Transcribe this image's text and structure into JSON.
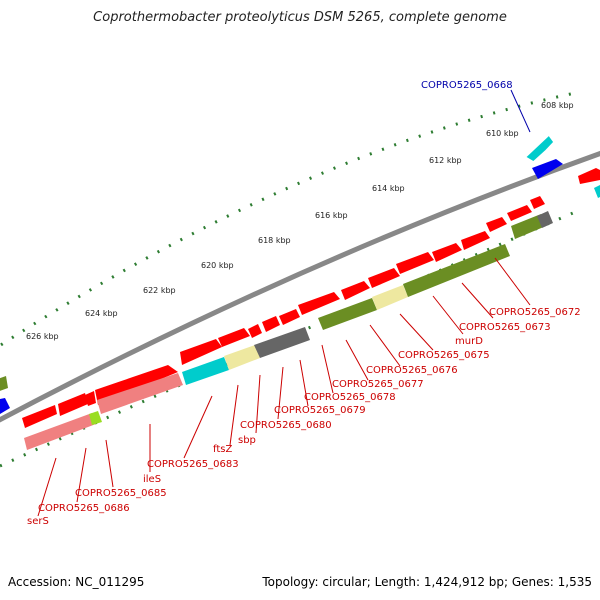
{
  "title": "Coprothermobacter proteolyticus DSM 5265, complete genome",
  "footer": {
    "accession": "Accession: NC_011295",
    "topology": "Topology: circular; Length: 1,424,912 bp; Genes: 1,535"
  },
  "colors": {
    "backbone": "#808080",
    "red": "#ff0000",
    "salmon": "#f08080",
    "cyan": "#00cccc",
    "khaki": "#eee8a0",
    "gray": "#666666",
    "olive": "#6b8e23",
    "lime": "#99dd22",
    "blue": "#0000ee",
    "tick": "#2e7d32",
    "label_red": "#cc0000",
    "label_blue": "#0000aa"
  },
  "kbp_ticks": [
    "608 kbp",
    "610 kbp",
    "612 kbp",
    "614 kbp",
    "616 kbp",
    "618 kbp",
    "620 kbp",
    "622 kbp",
    "624 kbp",
    "626 kbp"
  ],
  "gene_labels_red": [
    "COPRO5265_0672",
    "COPRO5265_0673",
    "murD",
    "COPRO5265_0675",
    "COPRO5265_0676",
    "COPRO5265_0677",
    "COPRO5265_0678",
    "COPRO5265_0679",
    "COPRO5265_0680",
    "sbp",
    "ftsZ",
    "COPRO5265_0683",
    "ileS",
    "COPRO5265_0685",
    "COPRO5265_0686",
    "serS"
  ],
  "gene_labels_blue": [
    "COPRO5265_0668"
  ]
}
